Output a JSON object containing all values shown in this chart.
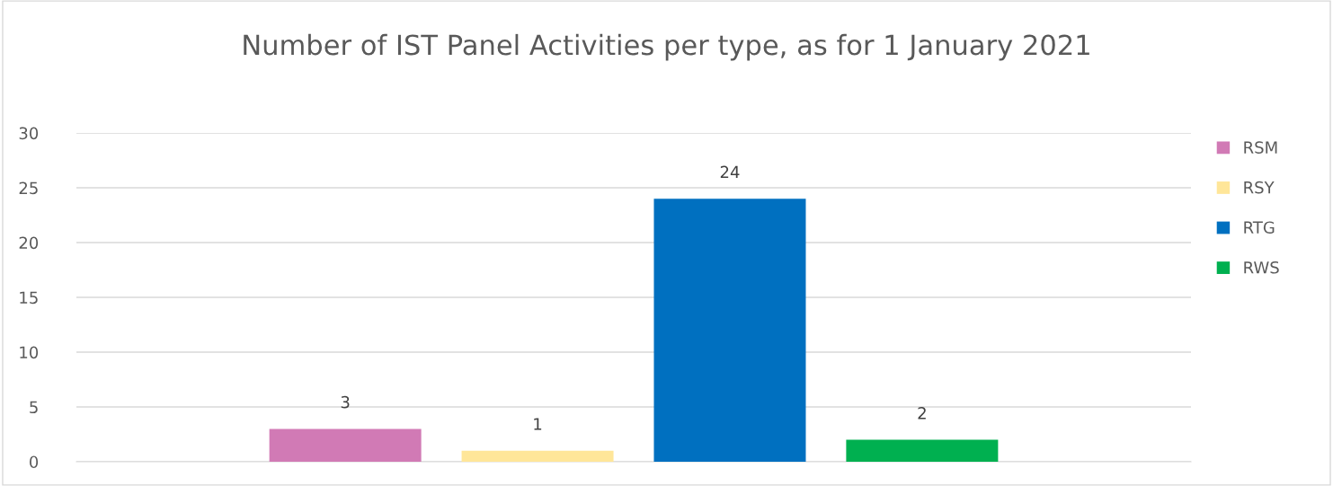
{
  "chart_data": {
    "type": "bar",
    "title": "Number of IST Panel Activities per type, as for 1 January 2021",
    "categories": [
      null
    ],
    "series": [
      {
        "name": "RSM",
        "color": "#d17ab5",
        "values": [
          3
        ]
      },
      {
        "name": "RSY",
        "color": "#ffe699",
        "values": [
          1
        ]
      },
      {
        "name": "RTG",
        "color": "#0070c0",
        "values": [
          24
        ]
      },
      {
        "name": "RWS",
        "color": "#00b050",
        "values": [
          2
        ]
      }
    ],
    "ylim": [
      0,
      30
    ],
    "yticks": [
      0,
      5,
      10,
      15,
      20,
      25,
      30
    ],
    "grid": "y",
    "legend": "right",
    "data_labels": true
  }
}
